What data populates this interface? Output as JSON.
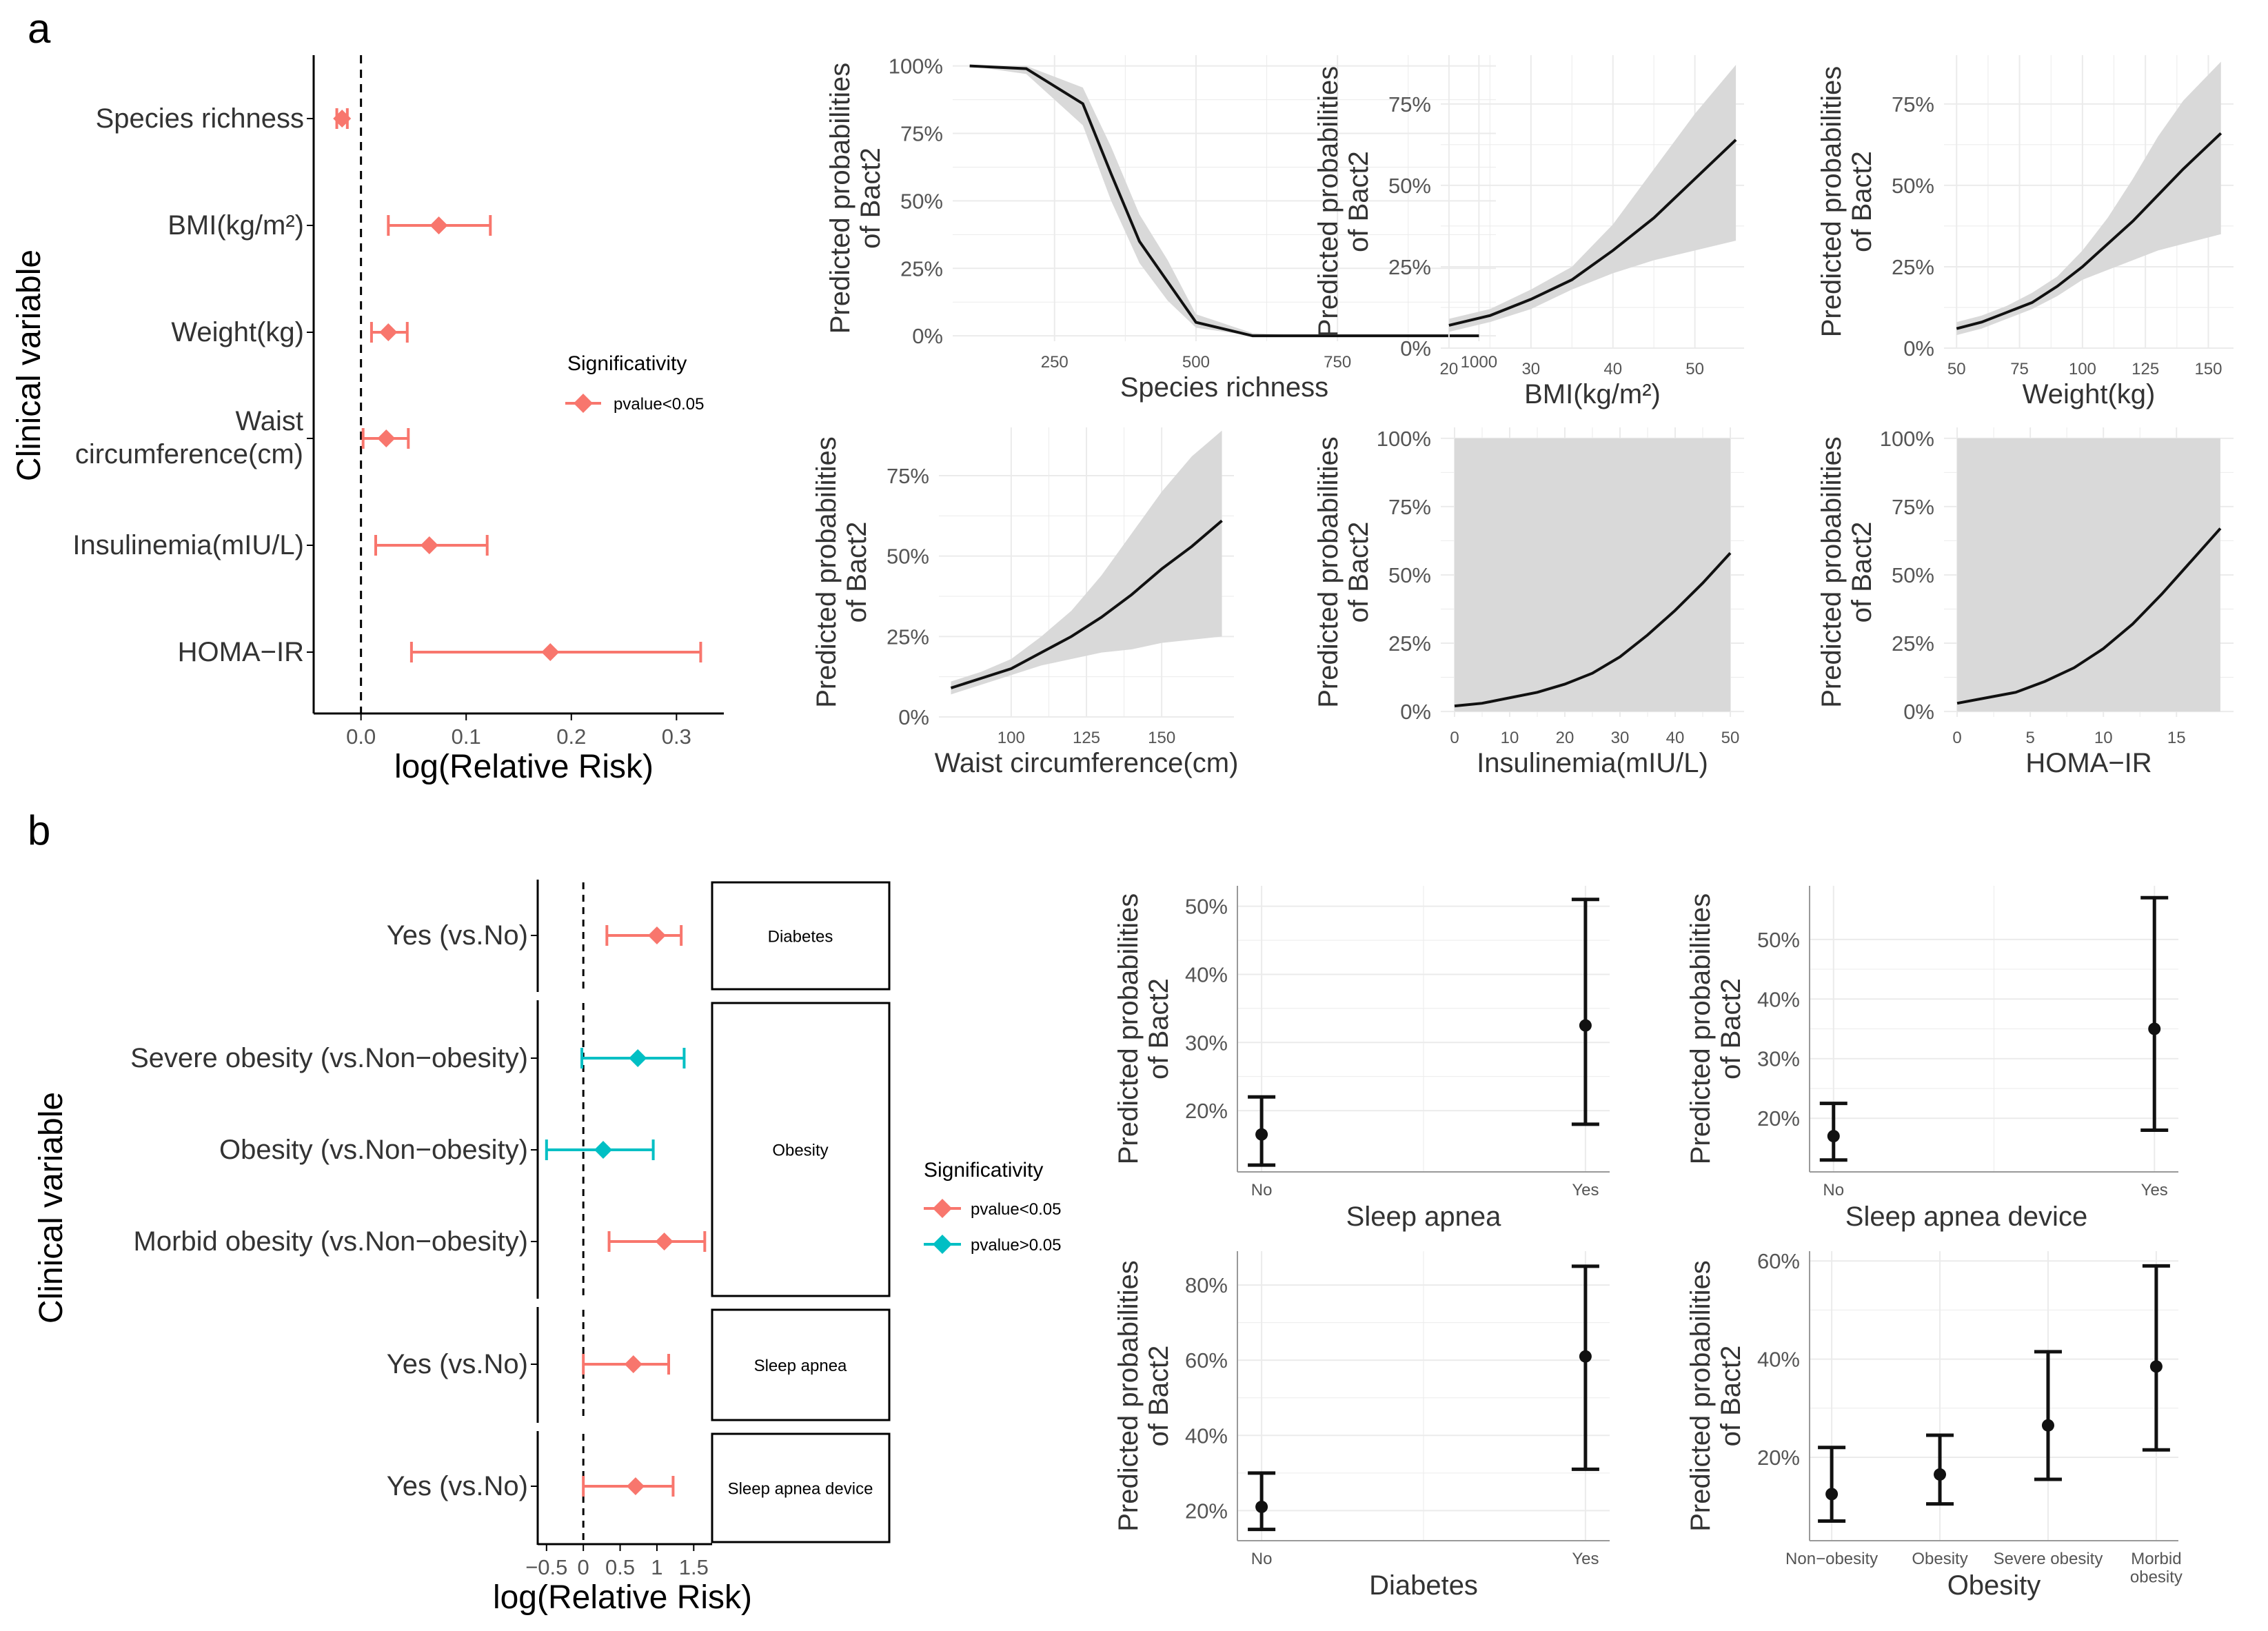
{
  "colors": {
    "significant": "#F8766D",
    "not_significant": "#00BFC4",
    "line": "#111111",
    "ribbon": "#d9d9d9",
    "grid": "#ebebeb"
  },
  "panel_a": {
    "label": "a",
    "forest": {
      "ylabel": "Clinical variable",
      "xlabel": "log(Relative Risk)",
      "legend": {
        "title": "Significativity",
        "items": [
          "pvalue<0.05"
        ]
      }
    }
  },
  "panel_b": {
    "label": "b",
    "forest": {
      "ylabel": "Clinical variable",
      "xlabel": "log(Relative Risk)",
      "legend": {
        "title": "Significativity",
        "items": [
          "pvalue<0.05",
          "pvalue>0.05"
        ]
      }
    }
  },
  "chart_data": [
    {
      "id": "a_forest",
      "type": "forest",
      "xlabel": "log(Relative Risk)",
      "ylabel": "Clinical variable",
      "xlim": [
        -0.045,
        0.345
      ],
      "xticks": [
        0.0,
        0.1,
        0.2,
        0.3
      ],
      "xtick_labels": [
        "0.0",
        "0.1",
        "0.2",
        "0.3"
      ],
      "rows": [
        {
          "label": "Species richness",
          "estimate": -0.018,
          "lower": -0.023,
          "upper": -0.013,
          "sig": "pvalue<0.05"
        },
        {
          "label": "BMI(kg/m²)",
          "estimate": 0.074,
          "lower": 0.026,
          "upper": 0.123,
          "sig": "pvalue<0.05"
        },
        {
          "label": "Weight(kg)",
          "estimate": 0.026,
          "lower": 0.01,
          "upper": 0.044,
          "sig": "pvalue<0.05"
        },
        {
          "label": "Waist circumference(cm)",
          "estimate": 0.024,
          "lower": 0.002,
          "upper": 0.045,
          "sig": "pvalue<0.05"
        },
        {
          "label": "Insulinemia(mIU/L)",
          "estimate": 0.065,
          "lower": 0.014,
          "upper": 0.12,
          "sig": "pvalue<0.05"
        },
        {
          "label": "HOMA−IR",
          "estimate": 0.18,
          "lower": 0.048,
          "upper": 0.323,
          "sig": "pvalue<0.05"
        }
      ]
    },
    {
      "id": "a_species",
      "type": "line",
      "xlabel": "Species richness",
      "ylabel": "Predicted probabilities of Bact2",
      "xlim": [
        70,
        1030
      ],
      "ylim": [
        -0.02,
        1.04
      ],
      "xticks": [
        250,
        500,
        750,
        1000
      ],
      "xtick_labels": [
        "250",
        "500",
        "750",
        "1000"
      ],
      "yticks": [
        0,
        0.25,
        0.5,
        0.75,
        1.0
      ],
      "ytick_labels": [
        "0%",
        "25%",
        "50%",
        "75%",
        "100%"
      ],
      "x": [
        100,
        200,
        300,
        350,
        400,
        450,
        500,
        600,
        700,
        800,
        1000
      ],
      "y": [
        1.0,
        0.99,
        0.86,
        0.6,
        0.35,
        0.2,
        0.05,
        0.0,
        0.0,
        0.0,
        0.0
      ],
      "lower": [
        1.0,
        0.97,
        0.78,
        0.5,
        0.27,
        0.13,
        0.03,
        0.0,
        0.0,
        0.0,
        0.0
      ],
      "upper": [
        1.0,
        1.0,
        0.92,
        0.7,
        0.45,
        0.28,
        0.08,
        0.01,
        0.0,
        0.0,
        0.0
      ]
    },
    {
      "id": "a_bmi",
      "type": "line",
      "xlabel": "BMI(kg/m²)",
      "ylabel": "Predicted probabilities of Bact2",
      "xlim": [
        19,
        56
      ],
      "ylim": [
        0,
        0.9
      ],
      "xticks": [
        20,
        30,
        40,
        50
      ],
      "xtick_labels": [
        "20",
        "30",
        "40",
        "50"
      ],
      "yticks": [
        0,
        0.25,
        0.5,
        0.75
      ],
      "ytick_labels": [
        "0%",
        "25%",
        "50%",
        "75%"
      ],
      "x": [
        20,
        25,
        30,
        35,
        40,
        45,
        50,
        55
      ],
      "y": [
        0.07,
        0.1,
        0.15,
        0.21,
        0.3,
        0.4,
        0.52,
        0.64
      ],
      "lower": [
        0.05,
        0.08,
        0.12,
        0.18,
        0.23,
        0.27,
        0.3,
        0.33
      ],
      "upper": [
        0.09,
        0.12,
        0.18,
        0.25,
        0.38,
        0.55,
        0.72,
        0.87
      ]
    },
    {
      "id": "a_weight",
      "type": "line",
      "xlabel": "Weight(kg)",
      "ylabel": "Predicted probabilities of Bact2",
      "xlim": [
        45,
        160
      ],
      "ylim": [
        0,
        0.9
      ],
      "xticks": [
        50,
        75,
        100,
        125,
        150
      ],
      "xtick_labels": [
        "50",
        "75",
        "100",
        "125",
        "150"
      ],
      "yticks": [
        0,
        0.25,
        0.5,
        0.75
      ],
      "ytick_labels": [
        "0%",
        "25%",
        "50%",
        "75%"
      ],
      "x": [
        50,
        60,
        70,
        80,
        90,
        100,
        110,
        120,
        130,
        140,
        155
      ],
      "y": [
        0.06,
        0.08,
        0.11,
        0.14,
        0.19,
        0.25,
        0.32,
        0.39,
        0.47,
        0.55,
        0.66
      ],
      "lower": [
        0.04,
        0.06,
        0.09,
        0.12,
        0.16,
        0.21,
        0.24,
        0.27,
        0.3,
        0.32,
        0.35
      ],
      "upper": [
        0.08,
        0.1,
        0.13,
        0.17,
        0.22,
        0.3,
        0.4,
        0.52,
        0.65,
        0.76,
        0.88
      ]
    },
    {
      "id": "a_waist",
      "type": "line",
      "xlabel": "Waist circumference(cm)",
      "ylabel": "Predicted probabilities of Bact2",
      "xlim": [
        76,
        174
      ],
      "ylim": [
        0,
        0.9
      ],
      "xticks": [
        100,
        125,
        150
      ],
      "xtick_labels": [
        "100",
        "125",
        "150"
      ],
      "yticks": [
        0,
        0.25,
        0.5,
        0.75
      ],
      "ytick_labels": [
        "0%",
        "25%",
        "50%",
        "75%"
      ],
      "x": [
        80,
        90,
        100,
        110,
        120,
        130,
        140,
        150,
        160,
        170
      ],
      "y": [
        0.09,
        0.12,
        0.15,
        0.2,
        0.25,
        0.31,
        0.38,
        0.46,
        0.53,
        0.61
      ],
      "lower": [
        0.07,
        0.1,
        0.13,
        0.16,
        0.18,
        0.2,
        0.21,
        0.23,
        0.24,
        0.25
      ],
      "upper": [
        0.11,
        0.14,
        0.18,
        0.25,
        0.33,
        0.44,
        0.57,
        0.7,
        0.81,
        0.89
      ]
    },
    {
      "id": "a_insulin",
      "type": "line",
      "xlabel": "Insulinemia(mIU/L)",
      "ylabel": "Predicted probabilities of Bact2",
      "xlim": [
        -2.5,
        52.5
      ],
      "ylim": [
        -0.02,
        1.04
      ],
      "xticks": [
        0,
        10,
        20,
        30,
        40,
        50
      ],
      "xtick_labels": [
        "0",
        "10",
        "20",
        "30",
        "40",
        "50"
      ],
      "yticks": [
        0,
        0.25,
        0.5,
        0.75,
        1.0
      ],
      "ytick_labels": [
        "0%",
        "25%",
        "50%",
        "75%",
        "100%"
      ],
      "x": [
        0,
        5,
        10,
        15,
        20,
        25,
        30,
        35,
        40,
        45,
        50
      ],
      "y": [
        0.02,
        0.03,
        0.05,
        0.07,
        0.1,
        0.14,
        0.2,
        0.28,
        0.37,
        0.47,
        0.58
      ],
      "lower": [
        0.0,
        0.0,
        0.0,
        0.0,
        0.0,
        0.0,
        0.0,
        0.0,
        0.0,
        0.0,
        0.0
      ],
      "upper": [
        1.0,
        1.0,
        1.0,
        1.0,
        1.0,
        1.0,
        1.0,
        1.0,
        1.0,
        1.0,
        1.0
      ]
    },
    {
      "id": "a_homa",
      "type": "line",
      "xlabel": "HOMA−IR",
      "ylabel": "Predicted probabilities of Bact2",
      "xlim": [
        -0.9,
        18.9
      ],
      "ylim": [
        -0.02,
        1.04
      ],
      "xticks": [
        0,
        5,
        10,
        15
      ],
      "xtick_labels": [
        "0",
        "5",
        "10",
        "15"
      ],
      "yticks": [
        0,
        0.25,
        0.5,
        0.75,
        1.0
      ],
      "ytick_labels": [
        "0%",
        "25%",
        "50%",
        "75%",
        "100%"
      ],
      "x": [
        0,
        2,
        4,
        6,
        8,
        10,
        12,
        14,
        16,
        18
      ],
      "y": [
        0.03,
        0.05,
        0.07,
        0.11,
        0.16,
        0.23,
        0.32,
        0.43,
        0.55,
        0.67
      ],
      "lower": [
        0.0,
        0.0,
        0.0,
        0.0,
        0.0,
        0.0,
        0.0,
        0.0,
        0.0,
        0.0
      ],
      "upper": [
        1.0,
        1.0,
        1.0,
        1.0,
        1.0,
        1.0,
        1.0,
        1.0,
        1.0,
        1.0
      ]
    },
    {
      "id": "b_forest",
      "type": "forest",
      "xlabel": "log(Relative Risk)",
      "ylabel": "Clinical variable",
      "xlim": [
        -0.62,
        1.75
      ],
      "xticks": [
        -0.5,
        0,
        0.5,
        1,
        1.5
      ],
      "xtick_labels": [
        "−0.5",
        "0",
        "0.5",
        "1",
        "1.5"
      ],
      "facets": [
        {
          "label": "Diabetes",
          "rows": [
            0
          ]
        },
        {
          "label": "Obesity",
          "rows": [
            1,
            2,
            3
          ]
        },
        {
          "label": "Sleep apnea",
          "rows": [
            4
          ]
        },
        {
          "label": "Sleep apnea device",
          "rows": [
            5
          ]
        }
      ],
      "rows": [
        {
          "label": "Yes (vs.No)",
          "estimate": 1.0,
          "lower": 0.32,
          "upper": 1.33,
          "sig": "pvalue<0.05"
        },
        {
          "label": "Severe obesity (vs.Non−obesity)",
          "estimate": 0.74,
          "lower": -0.02,
          "upper": 1.37,
          "sig": "pvalue>0.05"
        },
        {
          "label": "Obesity (vs.Non−obesity)",
          "estimate": 0.27,
          "lower": -0.5,
          "upper": 0.95,
          "sig": "pvalue>0.05"
        },
        {
          "label": "Morbid obesity (vs.Non−obesity)",
          "estimate": 1.1,
          "lower": 0.35,
          "upper": 1.65,
          "sig": "pvalue<0.05"
        },
        {
          "label": "Yes (vs.No)",
          "estimate": 0.68,
          "lower": 0.0,
          "upper": 1.16,
          "sig": "pvalue<0.05"
        },
        {
          "label": "Yes (vs.No)",
          "estimate": 0.71,
          "lower": 0.0,
          "upper": 1.22,
          "sig": "pvalue<0.05"
        }
      ]
    },
    {
      "id": "b_sleep",
      "type": "errorbar",
      "xlabel": "Sleep apnea",
      "ylabel": "Predicted probabilities of Bact2",
      "categories": [
        "No",
        "Yes"
      ],
      "ylim": [
        0.11,
        0.53
      ],
      "yticks": [
        0.2,
        0.3,
        0.4,
        0.5
      ],
      "ytick_labels": [
        "20%",
        "30%",
        "40%",
        "50%"
      ],
      "values": [
        0.165,
        0.325
      ],
      "lower": [
        0.12,
        0.18
      ],
      "upper": [
        0.22,
        0.51
      ]
    },
    {
      "id": "b_device",
      "type": "errorbar",
      "xlabel": "Sleep apnea device",
      "ylabel": "Predicted probabilities of Bact2",
      "categories": [
        "No",
        "Yes"
      ],
      "ylim": [
        0.11,
        0.59
      ],
      "yticks": [
        0.2,
        0.3,
        0.4,
        0.5
      ],
      "ytick_labels": [
        "20%",
        "30%",
        "40%",
        "50%"
      ],
      "values": [
        0.17,
        0.35
      ],
      "lower": [
        0.13,
        0.18
      ],
      "upper": [
        0.225,
        0.57
      ]
    },
    {
      "id": "b_diabetes",
      "type": "errorbar",
      "xlabel": "Diabetes",
      "ylabel": "Predicted probabilities of Bact2",
      "categories": [
        "No",
        "Yes"
      ],
      "ylim": [
        0.12,
        0.89
      ],
      "yticks": [
        0.2,
        0.4,
        0.6,
        0.8
      ],
      "ytick_labels": [
        "20%",
        "40%",
        "60%",
        "80%"
      ],
      "values": [
        0.21,
        0.61
      ],
      "lower": [
        0.15,
        0.31
      ],
      "upper": [
        0.3,
        0.85
      ]
    },
    {
      "id": "b_obesity",
      "type": "errorbar",
      "xlabel": "Obesity",
      "ylabel": "Predicted probabilities of Bact2",
      "categories": [
        "Non−obesity",
        "Obesity",
        "Severe obesity",
        "Morbid obesity"
      ],
      "ylim": [
        0.03,
        0.62
      ],
      "yticks": [
        0.2,
        0.4,
        0.6
      ],
      "ytick_labels": [
        "20%",
        "40%",
        "60%"
      ],
      "values": [
        0.125,
        0.165,
        0.265,
        0.385
      ],
      "lower": [
        0.07,
        0.105,
        0.155,
        0.215
      ],
      "upper": [
        0.22,
        0.245,
        0.415,
        0.59
      ]
    }
  ]
}
